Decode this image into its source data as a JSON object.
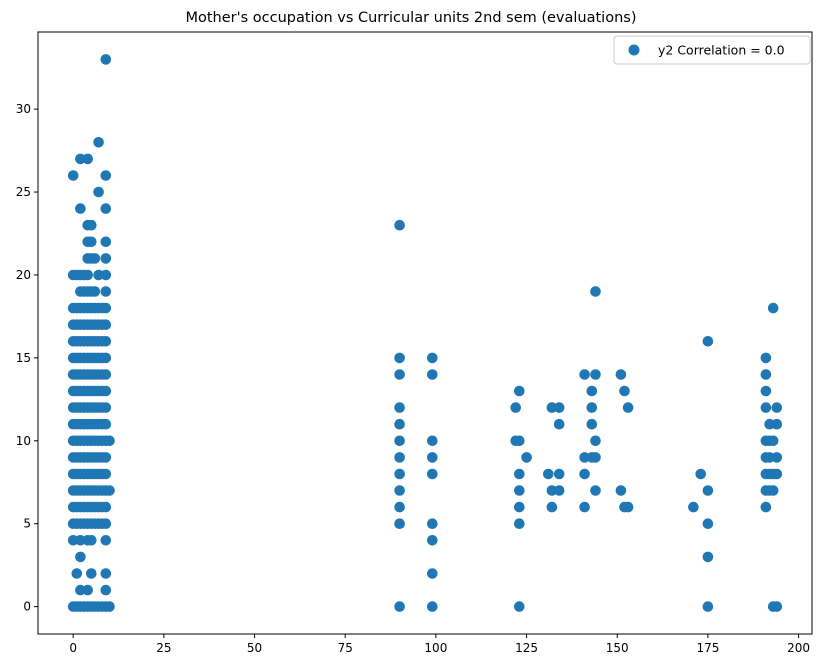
{
  "chart_data": {
    "type": "scatter",
    "title": "Mother's occupation vs Curricular units 2nd sem (evaluations)",
    "xlabel": "",
    "ylabel": "",
    "xlim": [
      -9.7,
      203.7
    ],
    "ylim": [
      -1.65,
      34.65
    ],
    "xticks": [
      0,
      25,
      50,
      75,
      100,
      125,
      150,
      175,
      200
    ],
    "yticks": [
      0,
      5,
      10,
      15,
      20,
      25,
      30
    ],
    "grid": false,
    "legend_position": "top-right",
    "marker_color": "#1f77b4",
    "series": [
      {
        "name": "y2 Correlation = 0.0",
        "points": [
          [
            0,
            26
          ],
          [
            0,
            20
          ],
          [
            0,
            18
          ],
          [
            0,
            17
          ],
          [
            0,
            16
          ],
          [
            0,
            15
          ],
          [
            0,
            14
          ],
          [
            0,
            13
          ],
          [
            0,
            12
          ],
          [
            0,
            11
          ],
          [
            0,
            10
          ],
          [
            0,
            9
          ],
          [
            0,
            8
          ],
          [
            0,
            7
          ],
          [
            0,
            6
          ],
          [
            0,
            5
          ],
          [
            0,
            4
          ],
          [
            0,
            0
          ],
          [
            1,
            20
          ],
          [
            1,
            18
          ],
          [
            1,
            17
          ],
          [
            1,
            16
          ],
          [
            1,
            15
          ],
          [
            1,
            14
          ],
          [
            1,
            13
          ],
          [
            1,
            12
          ],
          [
            1,
            11
          ],
          [
            1,
            10
          ],
          [
            1,
            9
          ],
          [
            1,
            8
          ],
          [
            1,
            7
          ],
          [
            1,
            6
          ],
          [
            1,
            5
          ],
          [
            1,
            2
          ],
          [
            1,
            0
          ],
          [
            2,
            27
          ],
          [
            2,
            24
          ],
          [
            2,
            20
          ],
          [
            2,
            19
          ],
          [
            2,
            18
          ],
          [
            2,
            17
          ],
          [
            2,
            16
          ],
          [
            2,
            15
          ],
          [
            2,
            14
          ],
          [
            2,
            13
          ],
          [
            2,
            12
          ],
          [
            2,
            11
          ],
          [
            2,
            10
          ],
          [
            2,
            9
          ],
          [
            2,
            8
          ],
          [
            2,
            7
          ],
          [
            2,
            6
          ],
          [
            2,
            5
          ],
          [
            2,
            4
          ],
          [
            2,
            3
          ],
          [
            2,
            1
          ],
          [
            2,
            0
          ],
          [
            3,
            20
          ],
          [
            3,
            19
          ],
          [
            3,
            18
          ],
          [
            3,
            17
          ],
          [
            3,
            16
          ],
          [
            3,
            15
          ],
          [
            3,
            14
          ],
          [
            3,
            13
          ],
          [
            3,
            12
          ],
          [
            3,
            11
          ],
          [
            3,
            10
          ],
          [
            3,
            9
          ],
          [
            3,
            8
          ],
          [
            3,
            7
          ],
          [
            3,
            6
          ],
          [
            3,
            5
          ],
          [
            3,
            0
          ],
          [
            4,
            27
          ],
          [
            4,
            23
          ],
          [
            4,
            22
          ],
          [
            4,
            21
          ],
          [
            4,
            20
          ],
          [
            4,
            19
          ],
          [
            4,
            18
          ],
          [
            4,
            17
          ],
          [
            4,
            16
          ],
          [
            4,
            15
          ],
          [
            4,
            14
          ],
          [
            4,
            13
          ],
          [
            4,
            12
          ],
          [
            4,
            11
          ],
          [
            4,
            10
          ],
          [
            4,
            9
          ],
          [
            4,
            8
          ],
          [
            4,
            7
          ],
          [
            4,
            6
          ],
          [
            4,
            5
          ],
          [
            4,
            4
          ],
          [
            4,
            1
          ],
          [
            4,
            0
          ],
          [
            5,
            23
          ],
          [
            5,
            22
          ],
          [
            5,
            21
          ],
          [
            5,
            19
          ],
          [
            5,
            18
          ],
          [
            5,
            17
          ],
          [
            5,
            16
          ],
          [
            5,
            15
          ],
          [
            5,
            14
          ],
          [
            5,
            13
          ],
          [
            5,
            12
          ],
          [
            5,
            11
          ],
          [
            5,
            10
          ],
          [
            5,
            9
          ],
          [
            5,
            8
          ],
          [
            5,
            7
          ],
          [
            5,
            6
          ],
          [
            5,
            5
          ],
          [
            5,
            4
          ],
          [
            5,
            2
          ],
          [
            5,
            0
          ],
          [
            6,
            21
          ],
          [
            6,
            19
          ],
          [
            6,
            18
          ],
          [
            6,
            17
          ],
          [
            6,
            16
          ],
          [
            6,
            15
          ],
          [
            6,
            14
          ],
          [
            6,
            13
          ],
          [
            6,
            12
          ],
          [
            6,
            11
          ],
          [
            6,
            10
          ],
          [
            6,
            9
          ],
          [
            6,
            8
          ],
          [
            6,
            7
          ],
          [
            6,
            6
          ],
          [
            6,
            5
          ],
          [
            6,
            0
          ],
          [
            7,
            28
          ],
          [
            7,
            25
          ],
          [
            7,
            20
          ],
          [
            7,
            18
          ],
          [
            7,
            17
          ],
          [
            7,
            16
          ],
          [
            7,
            15
          ],
          [
            7,
            14
          ],
          [
            7,
            13
          ],
          [
            7,
            12
          ],
          [
            7,
            11
          ],
          [
            7,
            10
          ],
          [
            7,
            9
          ],
          [
            7,
            8
          ],
          [
            7,
            7
          ],
          [
            7,
            6
          ],
          [
            7,
            5
          ],
          [
            7,
            0
          ],
          [
            8,
            18
          ],
          [
            8,
            17
          ],
          [
            8,
            16
          ],
          [
            8,
            15
          ],
          [
            8,
            14
          ],
          [
            8,
            13
          ],
          [
            8,
            12
          ],
          [
            8,
            11
          ],
          [
            8,
            10
          ],
          [
            8,
            9
          ],
          [
            8,
            8
          ],
          [
            8,
            7
          ],
          [
            8,
            6
          ],
          [
            8,
            5
          ],
          [
            8,
            0
          ],
          [
            9,
            33
          ],
          [
            9,
            26
          ],
          [
            9,
            24
          ],
          [
            9,
            22
          ],
          [
            9,
            21
          ],
          [
            9,
            20
          ],
          [
            9,
            19
          ],
          [
            9,
            18
          ],
          [
            9,
            17
          ],
          [
            9,
            16
          ],
          [
            9,
            15
          ],
          [
            9,
            14
          ],
          [
            9,
            13
          ],
          [
            9,
            12
          ],
          [
            9,
            11
          ],
          [
            9,
            10
          ],
          [
            9,
            9
          ],
          [
            9,
            8
          ],
          [
            9,
            7
          ],
          [
            9,
            6
          ],
          [
            9,
            5
          ],
          [
            9,
            4
          ],
          [
            9,
            2
          ],
          [
            9,
            1
          ],
          [
            9,
            0
          ],
          [
            10,
            10
          ],
          [
            10,
            7
          ],
          [
            10,
            0
          ],
          [
            90,
            23
          ],
          [
            90,
            15
          ],
          [
            90,
            14
          ],
          [
            90,
            12
          ],
          [
            90,
            11
          ],
          [
            90,
            10
          ],
          [
            90,
            9
          ],
          [
            90,
            8
          ],
          [
            90,
            7
          ],
          [
            90,
            6
          ],
          [
            90,
            5
          ],
          [
            90,
            0
          ],
          [
            99,
            15
          ],
          [
            99,
            14
          ],
          [
            99,
            10
          ],
          [
            99,
            9
          ],
          [
            99,
            8
          ],
          [
            99,
            5
          ],
          [
            99,
            4
          ],
          [
            99,
            2
          ],
          [
            99,
            0
          ],
          [
            122,
            12
          ],
          [
            122,
            10
          ],
          [
            123,
            13
          ],
          [
            123,
            10
          ],
          [
            123,
            8
          ],
          [
            123,
            7
          ],
          [
            123,
            6
          ],
          [
            123,
            5
          ],
          [
            123,
            0
          ],
          [
            125,
            9
          ],
          [
            131,
            8
          ],
          [
            132,
            12
          ],
          [
            132,
            7
          ],
          [
            132,
            6
          ],
          [
            134,
            12
          ],
          [
            134,
            11
          ],
          [
            134,
            8
          ],
          [
            134,
            7
          ],
          [
            141,
            14
          ],
          [
            141,
            9
          ],
          [
            141,
            8
          ],
          [
            141,
            6
          ],
          [
            143,
            13
          ],
          [
            143,
            12
          ],
          [
            143,
            11
          ],
          [
            143,
            9
          ],
          [
            144,
            19
          ],
          [
            144,
            14
          ],
          [
            144,
            10
          ],
          [
            144,
            9
          ],
          [
            144,
            7
          ],
          [
            151,
            14
          ],
          [
            151,
            7
          ],
          [
            152,
            13
          ],
          [
            152,
            6
          ],
          [
            153,
            12
          ],
          [
            153,
            6
          ],
          [
            171,
            6
          ],
          [
            173,
            8
          ],
          [
            175,
            16
          ],
          [
            175,
            7
          ],
          [
            175,
            5
          ],
          [
            175,
            3
          ],
          [
            175,
            0
          ],
          [
            191,
            15
          ],
          [
            191,
            14
          ],
          [
            191,
            13
          ],
          [
            191,
            12
          ],
          [
            191,
            10
          ],
          [
            191,
            9
          ],
          [
            191,
            8
          ],
          [
            191,
            7
          ],
          [
            191,
            6
          ],
          [
            192,
            11
          ],
          [
            192,
            10
          ],
          [
            192,
            9
          ],
          [
            192,
            8
          ],
          [
            192,
            7
          ],
          [
            193,
            18
          ],
          [
            193,
            10
          ],
          [
            193,
            8
          ],
          [
            193,
            7
          ],
          [
            193,
            0
          ],
          [
            194,
            12
          ],
          [
            194,
            11
          ],
          [
            194,
            9
          ],
          [
            194,
            8
          ],
          [
            194,
            0
          ]
        ]
      }
    ]
  }
}
